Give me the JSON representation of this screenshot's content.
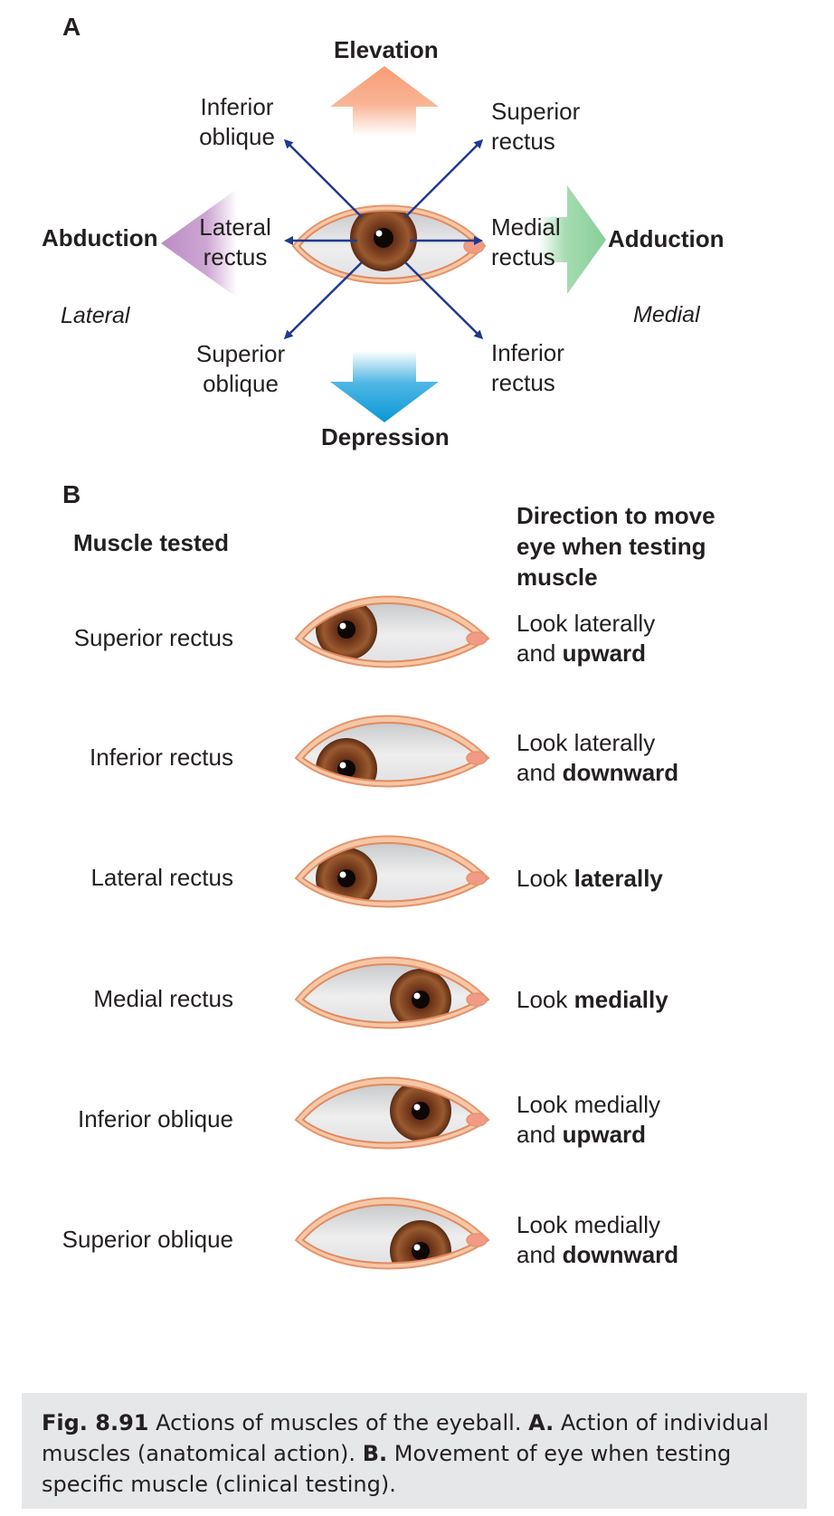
{
  "panel_a": {
    "label": "A",
    "directions": {
      "elevation": "Elevation",
      "depression": "Depression",
      "abduction": "Abduction",
      "adduction": "Adduction"
    },
    "sides": {
      "lateral": "Lateral",
      "medial": "Medial"
    },
    "muscles": {
      "inferior_oblique": [
        "Inferior",
        "oblique"
      ],
      "superior_rectus": [
        "Superior",
        "rectus"
      ],
      "lateral_rectus": [
        "Lateral",
        "rectus"
      ],
      "medial_rectus": [
        "Medial",
        "rectus"
      ],
      "superior_oblique": [
        "Superior",
        "oblique"
      ],
      "inferior_rectus": [
        "Inferior",
        "rectus"
      ]
    },
    "colors": {
      "elevation": "#f7a27a",
      "depression": "#1aa0da",
      "abduction": "#c095c8",
      "adduction": "#8fd2a0",
      "action_arrow": "#1f3a8f"
    }
  },
  "panel_b": {
    "label": "B",
    "header_muscle": "Muscle tested",
    "header_direction": [
      "Direction to move",
      "eye when testing",
      "muscle"
    ],
    "rows": [
      {
        "muscle": "Superior rectus",
        "line1": "Look laterally",
        "line2_prefix": "and ",
        "line2_bold": "upward",
        "gaze": "lateral-up"
      },
      {
        "muscle": "Inferior rectus",
        "line1": "Look laterally",
        "line2_prefix": "and ",
        "line2_bold": "downward",
        "gaze": "lateral-down"
      },
      {
        "muscle": "Lateral rectus",
        "line1_prefix": "Look ",
        "line1_bold": "laterally",
        "gaze": "lateral"
      },
      {
        "muscle": "Medial rectus",
        "line1_prefix": "Look ",
        "line1_bold": "medially",
        "gaze": "medial"
      },
      {
        "muscle": "Inferior oblique",
        "line1": "Look medially",
        "line2_prefix": "and ",
        "line2_bold": "upward",
        "gaze": "medial-up"
      },
      {
        "muscle": "Superior oblique",
        "line1": "Look medially",
        "line2_prefix": "and ",
        "line2_bold": "downward",
        "gaze": "medial-down"
      }
    ]
  },
  "caption": {
    "fig": "Fig. 8.91",
    "text1": " Actions of muscles of the eyeball. ",
    "a_label": "A.",
    "text2": " Action of individual muscles (anatomical action). ",
    "b_label": "B.",
    "text3": " Movement of eye when testing specific muscle (clinical testing)."
  }
}
